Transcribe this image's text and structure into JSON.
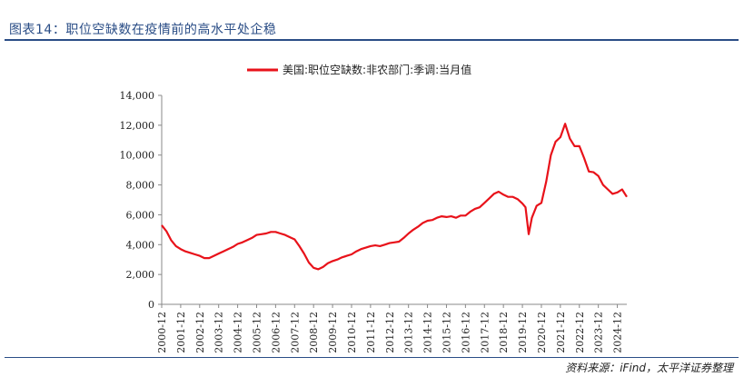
{
  "header": {
    "title": "图表14：职位空缺数在疫情前的高水平处企稳"
  },
  "footer": {
    "source": "资料来源：iFind，太平洋证券整理"
  },
  "colors": {
    "accent": "#2a4d86",
    "series": "#e8121a"
  },
  "chart_data": {
    "type": "line",
    "title": "",
    "xlabel": "",
    "ylabel": "",
    "ylim": [
      0,
      14000
    ],
    "yticks": [
      0,
      2000,
      4000,
      6000,
      8000,
      10000,
      12000,
      14000
    ],
    "ytick_labels": [
      "0",
      "2,000",
      "4,000",
      "6,000",
      "8,000",
      "10,000",
      "12,000",
      "14,000"
    ],
    "xtick_labels": [
      "2000-12",
      "2001-12",
      "2002-12",
      "2003-12",
      "2004-12",
      "2005-12",
      "2006-12",
      "2007-12",
      "2008-12",
      "2009-12",
      "2010-12",
      "2011-12",
      "2012-12",
      "2013-12",
      "2014-12",
      "2015-12",
      "2016-12",
      "2017-12",
      "2018-12",
      "2019-12",
      "2020-12",
      "2021-12",
      "2022-12",
      "2023-12",
      "2024-12"
    ],
    "legend_position": "top",
    "grid": false,
    "series": [
      {
        "name": "美国:职位空缺数:非农部门:季调:当月值",
        "points": [
          [
            "2000-12",
            5300
          ],
          [
            "2001-03",
            4900
          ],
          [
            "2001-06",
            4300
          ],
          [
            "2001-09",
            3900
          ],
          [
            "2001-12",
            3700
          ],
          [
            "2002-03",
            3550
          ],
          [
            "2002-06",
            3450
          ],
          [
            "2002-09",
            3350
          ],
          [
            "2002-12",
            3250
          ],
          [
            "2003-03",
            3100
          ],
          [
            "2003-06",
            3100
          ],
          [
            "2003-09",
            3250
          ],
          [
            "2003-12",
            3400
          ],
          [
            "2004-03",
            3550
          ],
          [
            "2004-06",
            3700
          ],
          [
            "2004-09",
            3850
          ],
          [
            "2004-12",
            4050
          ],
          [
            "2005-03",
            4150
          ],
          [
            "2005-06",
            4300
          ],
          [
            "2005-09",
            4450
          ],
          [
            "2005-12",
            4650
          ],
          [
            "2006-03",
            4700
          ],
          [
            "2006-06",
            4750
          ],
          [
            "2006-09",
            4850
          ],
          [
            "2006-12",
            4850
          ],
          [
            "2007-03",
            4750
          ],
          [
            "2007-06",
            4650
          ],
          [
            "2007-09",
            4500
          ],
          [
            "2007-12",
            4350
          ],
          [
            "2008-03",
            3900
          ],
          [
            "2008-06",
            3400
          ],
          [
            "2008-09",
            2800
          ],
          [
            "2008-12",
            2450
          ],
          [
            "2009-03",
            2350
          ],
          [
            "2009-06",
            2500
          ],
          [
            "2009-09",
            2750
          ],
          [
            "2009-12",
            2900
          ],
          [
            "2010-03",
            3000
          ],
          [
            "2010-06",
            3150
          ],
          [
            "2010-09",
            3250
          ],
          [
            "2010-12",
            3350
          ],
          [
            "2011-03",
            3550
          ],
          [
            "2011-06",
            3700
          ],
          [
            "2011-09",
            3800
          ],
          [
            "2011-12",
            3900
          ],
          [
            "2012-03",
            3950
          ],
          [
            "2012-06",
            3900
          ],
          [
            "2012-09",
            4000
          ],
          [
            "2012-12",
            4100
          ],
          [
            "2013-03",
            4150
          ],
          [
            "2013-06",
            4200
          ],
          [
            "2013-09",
            4450
          ],
          [
            "2013-12",
            4750
          ],
          [
            "2014-03",
            5000
          ],
          [
            "2014-06",
            5200
          ],
          [
            "2014-09",
            5450
          ],
          [
            "2014-12",
            5600
          ],
          [
            "2015-03",
            5650
          ],
          [
            "2015-06",
            5800
          ],
          [
            "2015-09",
            5900
          ],
          [
            "2015-12",
            5850
          ],
          [
            "2016-03",
            5900
          ],
          [
            "2016-06",
            5800
          ],
          [
            "2016-09",
            5950
          ],
          [
            "2016-12",
            5950
          ],
          [
            "2017-03",
            6200
          ],
          [
            "2017-06",
            6400
          ],
          [
            "2017-09",
            6500
          ],
          [
            "2017-12",
            6800
          ],
          [
            "2018-03",
            7100
          ],
          [
            "2018-06",
            7400
          ],
          [
            "2018-09",
            7550
          ],
          [
            "2018-12",
            7350
          ],
          [
            "2019-03",
            7200
          ],
          [
            "2019-06",
            7200
          ],
          [
            "2019-09",
            7050
          ],
          [
            "2019-12",
            6750
          ],
          [
            "2020-02",
            6500
          ],
          [
            "2020-04",
            4700
          ],
          [
            "2020-06",
            5800
          ],
          [
            "2020-09",
            6600
          ],
          [
            "2020-12",
            6800
          ],
          [
            "2021-03",
            8200
          ],
          [
            "2021-06",
            10000
          ],
          [
            "2021-09",
            10900
          ],
          [
            "2021-12",
            11200
          ],
          [
            "2022-03",
            12100
          ],
          [
            "2022-06",
            11100
          ],
          [
            "2022-09",
            10600
          ],
          [
            "2022-12",
            10600
          ],
          [
            "2023-03",
            9800
          ],
          [
            "2023-06",
            8900
          ],
          [
            "2023-09",
            8850
          ],
          [
            "2023-12",
            8600
          ],
          [
            "2024-03",
            8000
          ],
          [
            "2024-06",
            7700
          ],
          [
            "2024-09",
            7400
          ],
          [
            "2024-12",
            7500
          ],
          [
            "2025-03",
            7700
          ],
          [
            "2025-06",
            7200
          ]
        ]
      }
    ]
  }
}
